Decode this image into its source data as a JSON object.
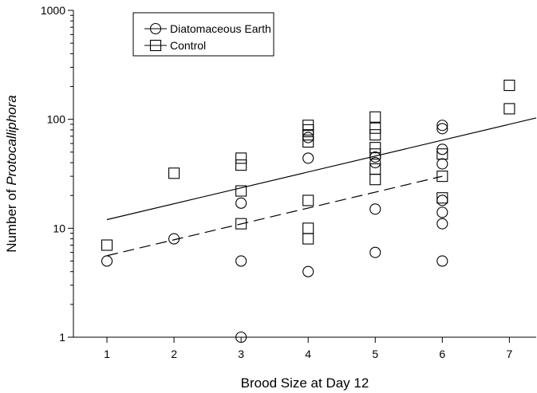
{
  "chart_data": {
    "type": "scatter",
    "xlabel": "Brood Size at Day 12",
    "ylabel_prefix": "Number of ",
    "ylabel_italic": "Protocalliphora",
    "x_ticks": [
      1,
      2,
      3,
      4,
      5,
      6,
      7
    ],
    "xlim": [
      0.5,
      7.4
    ],
    "y_scale": "log",
    "ylim": [
      1,
      1000
    ],
    "y_ticks": [
      1,
      10,
      100,
      1000
    ],
    "y_tick_labels": [
      "1",
      "10",
      "100",
      "1000"
    ],
    "legend_position": "top-left",
    "series": [
      {
        "name": "Diatomaceous Earth",
        "marker": "circle",
        "line_style": "solid",
        "points": [
          [
            1,
            5
          ],
          [
            2,
            8
          ],
          [
            3,
            17
          ],
          [
            3,
            5
          ],
          [
            3,
            1
          ],
          [
            4,
            68
          ],
          [
            4,
            44
          ],
          [
            4,
            4
          ],
          [
            5,
            45
          ],
          [
            5,
            40
          ],
          [
            5,
            15
          ],
          [
            5,
            6
          ],
          [
            6,
            88
          ],
          [
            6,
            82
          ],
          [
            6,
            53
          ],
          [
            6,
            39
          ],
          [
            6,
            18
          ],
          [
            6,
            14
          ],
          [
            6,
            11
          ],
          [
            6,
            5
          ]
        ],
        "fit_line": [
          [
            1,
            12
          ],
          [
            7.4,
            103
          ]
        ]
      },
      {
        "name": "Control",
        "marker": "square",
        "line_style": "dashed",
        "points": [
          [
            1,
            7
          ],
          [
            2,
            32
          ],
          [
            3,
            44
          ],
          [
            3,
            38
          ],
          [
            3,
            22
          ],
          [
            3,
            11
          ],
          [
            4,
            88
          ],
          [
            4,
            80
          ],
          [
            4,
            72
          ],
          [
            4,
            62
          ],
          [
            4,
            18
          ],
          [
            4,
            10
          ],
          [
            4,
            8
          ],
          [
            5,
            105
          ],
          [
            5,
            83
          ],
          [
            5,
            72
          ],
          [
            5,
            55
          ],
          [
            5,
            48
          ],
          [
            5,
            35
          ],
          [
            5,
            28
          ],
          [
            6,
            48
          ],
          [
            6,
            30
          ],
          [
            6,
            19
          ],
          [
            7,
            205
          ],
          [
            7,
            125
          ]
        ],
        "fit_line": [
          [
            1,
            5.6
          ],
          [
            6,
            30
          ]
        ]
      }
    ]
  }
}
